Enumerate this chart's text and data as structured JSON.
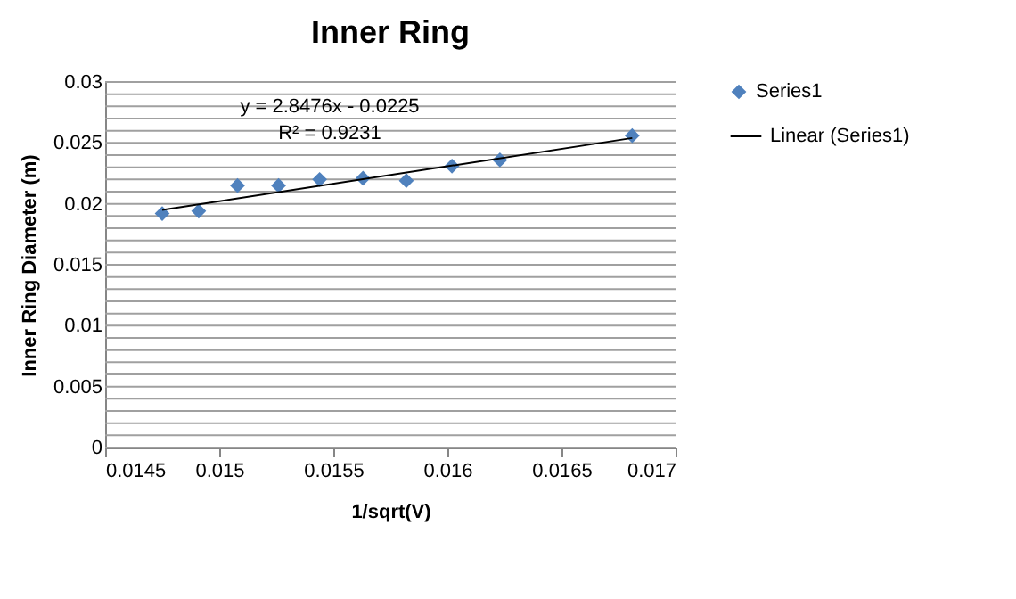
{
  "chart_data": {
    "type": "scatter",
    "title": "Inner Ring",
    "xlabel": "1/sqrt(V)",
    "ylabel": "Inner Ring Diameter (m)",
    "series": [
      {
        "name": "Series1",
        "type": "scatter",
        "color": "#4f81bd",
        "marker": "diamond",
        "x": [
          0.01475,
          0.01491,
          0.01508,
          0.01526,
          0.01544,
          0.01563,
          0.01582,
          0.01602,
          0.01623,
          0.01681
        ],
        "values": [
          0.0192,
          0.0194,
          0.0215,
          0.0215,
          0.022,
          0.0221,
          0.0219,
          0.0231,
          0.0236,
          0.0256
        ]
      },
      {
        "name": "Linear (Series1)",
        "type": "line",
        "color": "#000000",
        "line_style": "solid",
        "x": [
          0.01475,
          0.01681
        ],
        "values": [
          0.0195,
          0.0254
        ]
      }
    ],
    "annotations": [
      "y = 2.8476x - 0.0225",
      "R² = 0.9231"
    ],
    "xlim": [
      0.0145,
      0.017
    ],
    "xticks": [
      0.0145,
      0.015,
      0.0155,
      0.016,
      0.0165,
      0.017
    ],
    "ylim": [
      0,
      0.03
    ],
    "yticks": [
      0,
      {
        "value": 0.001,
        "label": null
      },
      {
        "value": 0.002,
        "label": null
      },
      {
        "value": 0.003,
        "label": null
      },
      {
        "value": 0.004,
        "label": null
      },
      0.005,
      {
        "value": 0.006,
        "label": null
      },
      {
        "value": 0.007,
        "label": null
      },
      {
        "value": 0.008,
        "label": null
      },
      {
        "value": 0.009,
        "label": null
      },
      0.01,
      {
        "value": 0.011,
        "label": null
      },
      {
        "value": 0.012,
        "label": null
      },
      {
        "value": 0.013,
        "label": null
      },
      {
        "value": 0.014,
        "label": null
      },
      0.015,
      {
        "value": 0.016,
        "label": null
      },
      {
        "value": 0.017,
        "label": null
      },
      {
        "value": 0.018,
        "label": null
      },
      {
        "value": 0.019,
        "label": null
      },
      0.02,
      {
        "value": 0.021,
        "label": null
      },
      {
        "value": 0.022,
        "label": null
      },
      {
        "value": 0.023,
        "label": null
      },
      {
        "value": 0.024,
        "label": null
      },
      0.025,
      {
        "value": 0.026,
        "label": null
      },
      {
        "value": 0.027,
        "label": null
      },
      {
        "value": 0.028,
        "label": null
      },
      {
        "value": 0.029,
        "label": null
      },
      0.03
    ],
    "grid": "y",
    "legend": "right"
  }
}
